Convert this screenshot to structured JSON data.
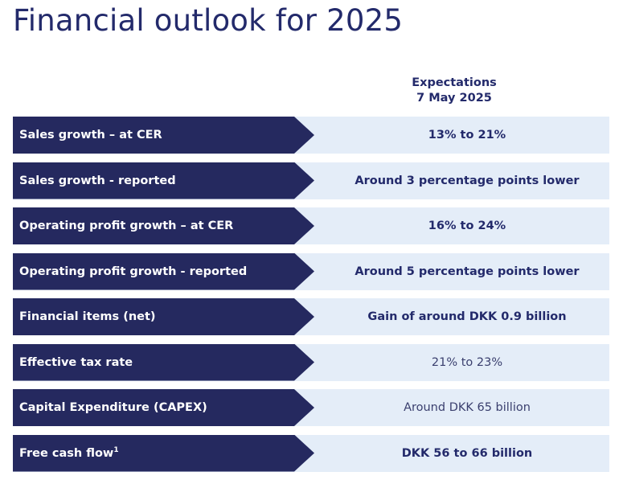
{
  "title": "Financial outlook for 2025",
  "header": {
    "line1": "Expectations",
    "line2": "7 May 2025"
  },
  "rows": [
    {
      "label": "Sales growth – at CER",
      "label_footnote": "",
      "value": "13% to 21%",
      "emphasis": "bold"
    },
    {
      "label": "Sales growth - reported",
      "label_footnote": "",
      "value": "Around 3 percentage points lower",
      "emphasis": "bold"
    },
    {
      "label": "Operating profit growth – at CER",
      "label_footnote": "",
      "value": "16% to 24%",
      "emphasis": "bold"
    },
    {
      "label": "Operating profit growth - reported",
      "label_footnote": "",
      "value": "Around 5 percentage points lower",
      "emphasis": "bold"
    },
    {
      "label": "Financial items (net)",
      "label_footnote": "",
      "value": "Gain of around DKK 0.9 billion",
      "emphasis": "bold"
    },
    {
      "label": "Effective tax rate",
      "label_footnote": "",
      "value": "21% to 23%",
      "emphasis": "normal"
    },
    {
      "label": "Capital Expenditure (CAPEX)",
      "label_footnote": "",
      "value": "Around DKK 65 billion",
      "emphasis": "normal"
    },
    {
      "label": "Free cash flow",
      "label_footnote": "1",
      "value": "DKK 56 to 66 billion",
      "emphasis": "bold"
    }
  ],
  "colors": {
    "label_band": "#25295f",
    "value_band": "#e4edf8",
    "text_primary": "#232a6b"
  }
}
